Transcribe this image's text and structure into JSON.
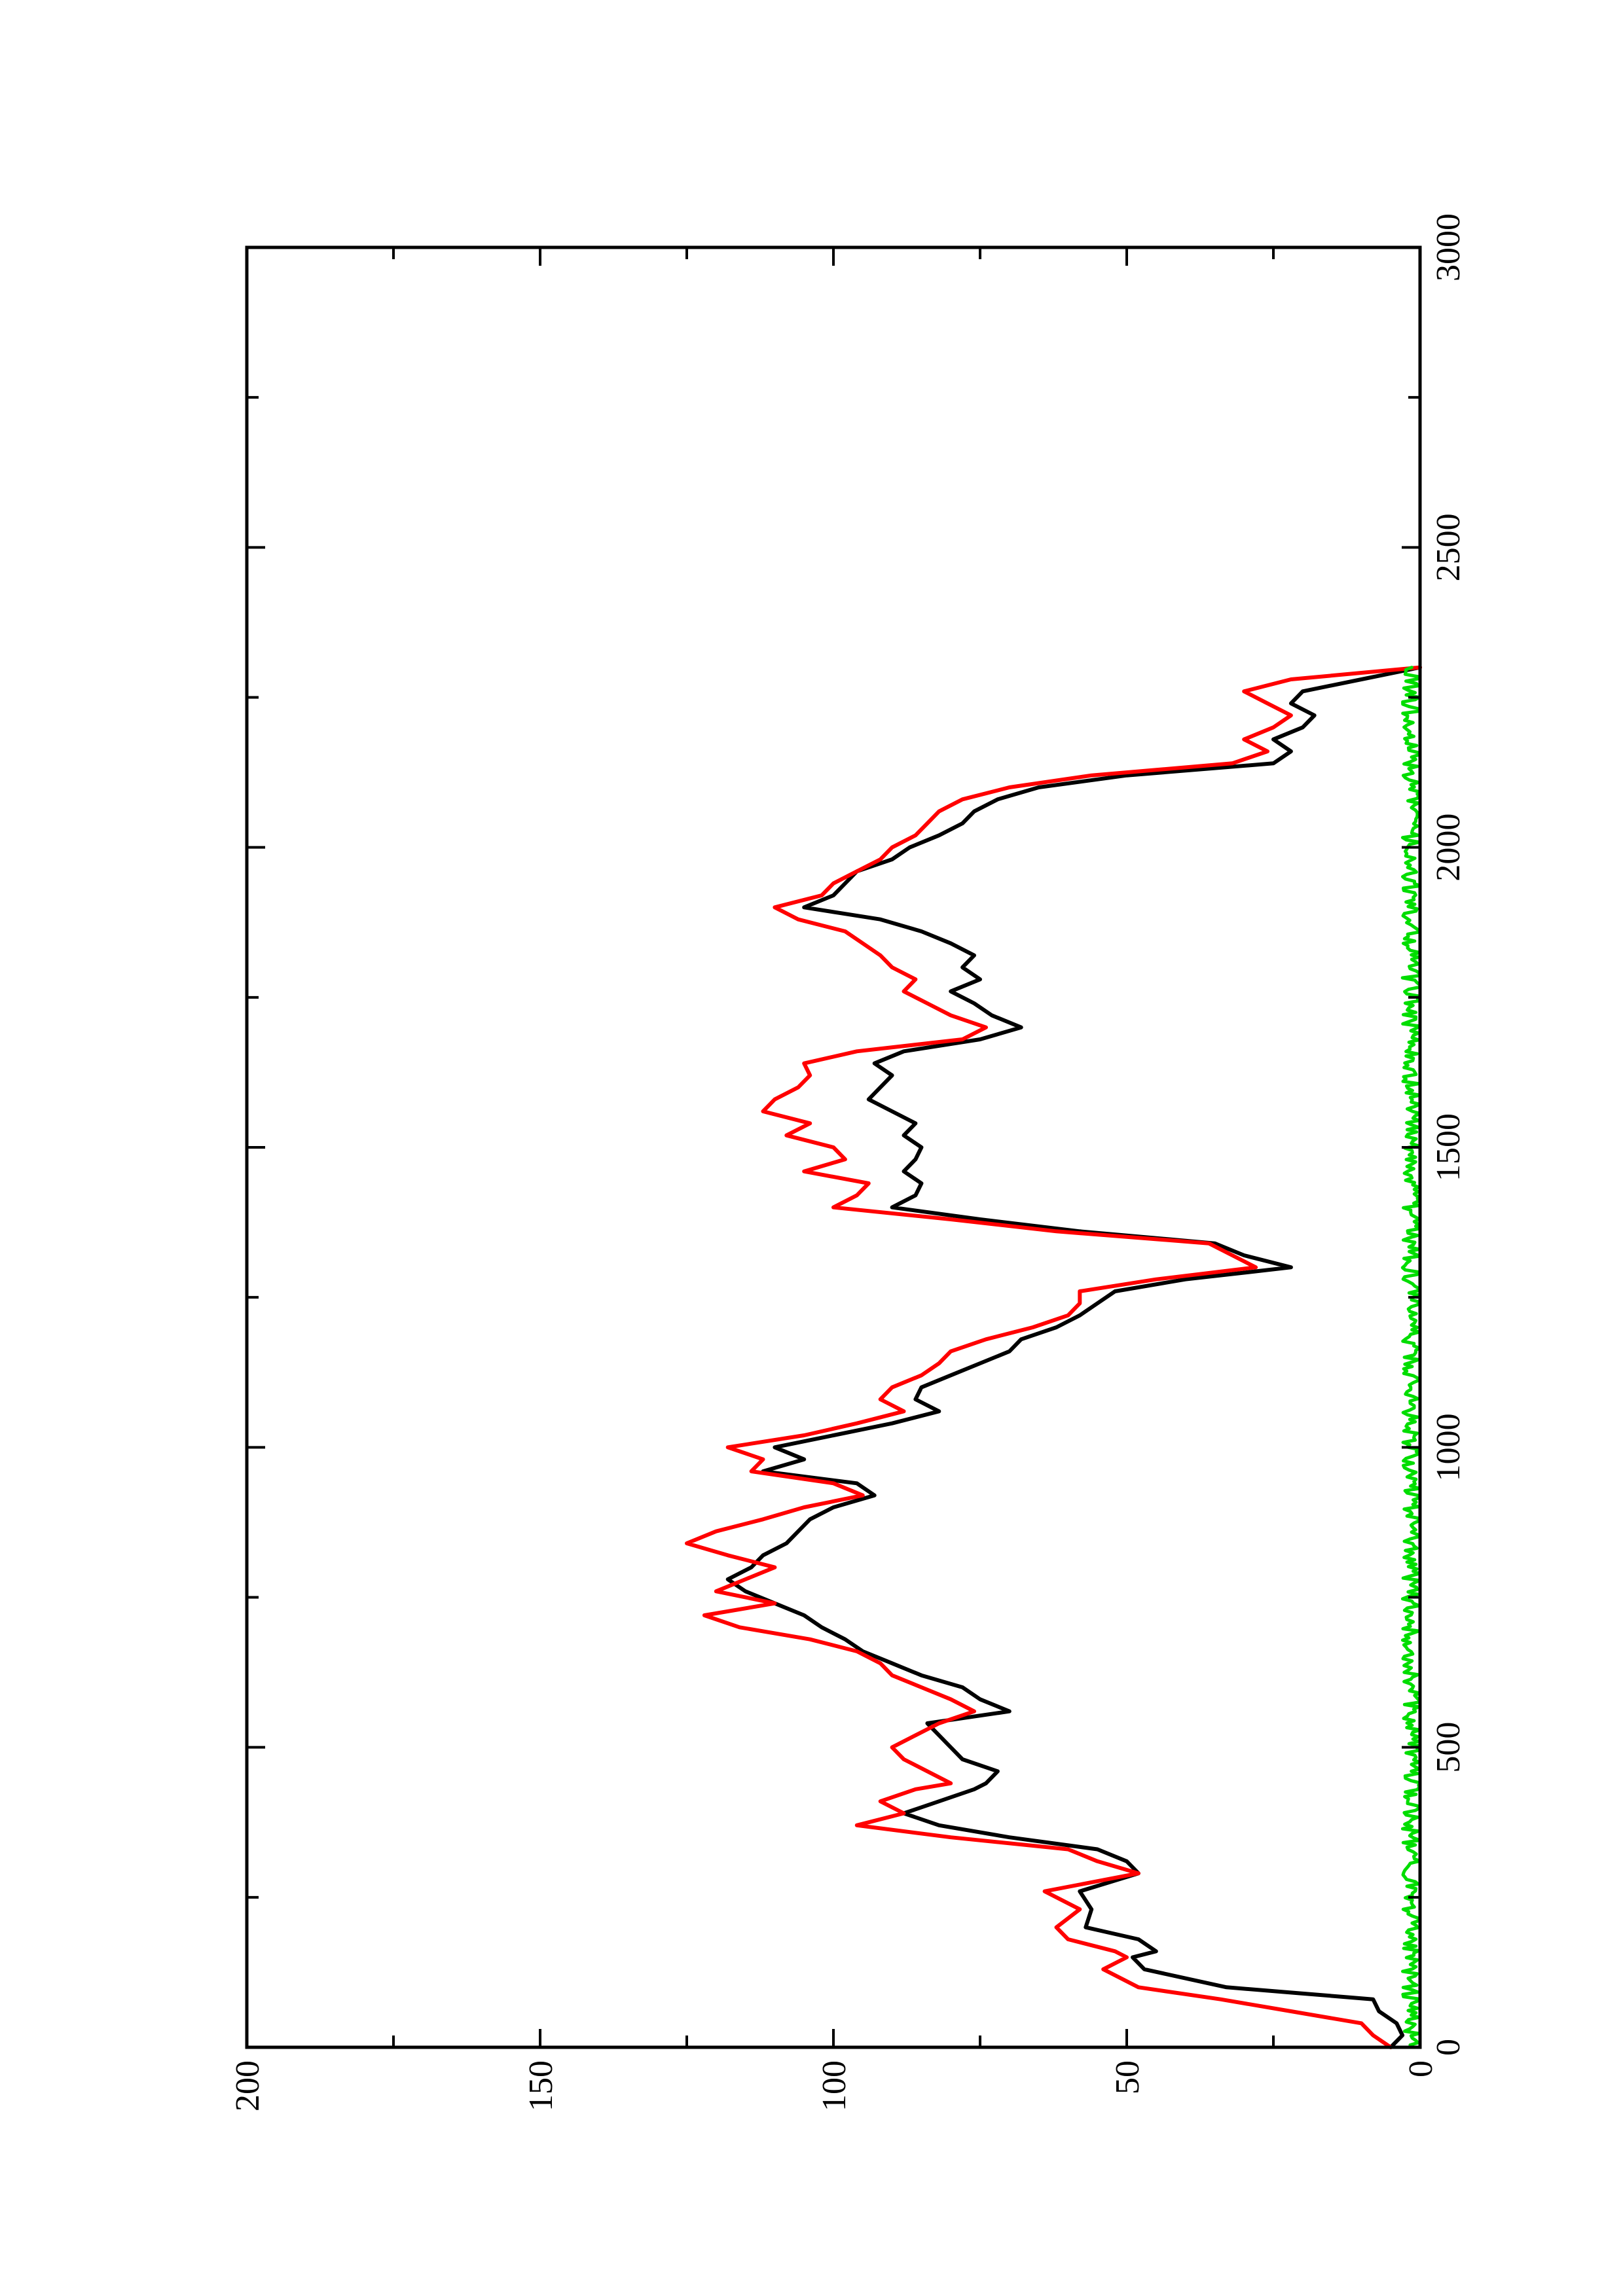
{
  "chart_data": {
    "type": "line",
    "title": "",
    "xlabel": "",
    "ylabel": "",
    "xlim": [
      0,
      3000
    ],
    "ylim": [
      0,
      200
    ],
    "x_ticks": [
      "0",
      "500",
      "1000",
      "1500",
      "2000",
      "2500",
      "3000"
    ],
    "y_ticks": [
      "0",
      "50",
      "100",
      "150",
      "200"
    ],
    "x_tick_values": [
      0,
      500,
      1000,
      1500,
      2000,
      2500,
      3000
    ],
    "y_tick_values": [
      0,
      50,
      100,
      150,
      200
    ],
    "x_minor_tick_values": [
      250,
      750,
      1250,
      1750,
      2250,
      2750
    ],
    "y_minor_tick_values": [
      25,
      75,
      125,
      175
    ],
    "grid": false,
    "legend": "none",
    "orientation": "rotated 90° counter-clockwise",
    "series": [
      {
        "color": "#000000",
        "x": [
          0,
          20,
          40,
          60,
          80,
          100,
          130,
          150,
          160,
          180,
          200,
          230,
          260,
          290,
          310,
          330,
          350,
          370,
          390,
          410,
          430,
          440,
          460,
          480,
          500,
          520,
          540,
          560,
          580,
          600,
          620,
          640,
          660,
          680,
          700,
          720,
          740,
          760,
          780,
          800,
          820,
          840,
          860,
          880,
          900,
          920,
          940,
          960,
          980,
          1000,
          1020,
          1040,
          1060,
          1080,
          1100,
          1120,
          1140,
          1160,
          1180,
          1200,
          1220,
          1240,
          1260,
          1280,
          1300,
          1320,
          1340,
          1360,
          1380,
          1400,
          1420,
          1440,
          1460,
          1480,
          1500,
          1520,
          1540,
          1560,
          1580,
          1600,
          1620,
          1640,
          1660,
          1680,
          1700,
          1720,
          1740,
          1760,
          1780,
          1800,
          1820,
          1840,
          1860,
          1880,
          1900,
          1920,
          1940,
          1960,
          1980,
          2000,
          2020,
          2040,
          2060,
          2080,
          2100,
          2120,
          2140,
          2160,
          2180,
          2200,
          2220,
          2240,
          2260,
          2280,
          2300
        ],
        "y": [
          5,
          3,
          4,
          7,
          8,
          33,
          47,
          49,
          45,
          48,
          57,
          56,
          58,
          48,
          50,
          55,
          70,
          82,
          88,
          82,
          76,
          74,
          72,
          78,
          80,
          82,
          84,
          70,
          75,
          78,
          85,
          90,
          95,
          98,
          102,
          105,
          110,
          115,
          118,
          114,
          112,
          108,
          106,
          104,
          100,
          93,
          96,
          112,
          105,
          110,
          100,
          90,
          82,
          86,
          85,
          80,
          75,
          70,
          68,
          62,
          58,
          55,
          52,
          40,
          22,
          30,
          35,
          58,
          75,
          90,
          86,
          85,
          88,
          86,
          85,
          88,
          86,
          90,
          94,
          92,
          90,
          93,
          88,
          75,
          68,
          73,
          76,
          80,
          75,
          78,
          76,
          80,
          85,
          92,
          105,
          100,
          98,
          96,
          90,
          87,
          82,
          78,
          76,
          72,
          65,
          50,
          25,
          22,
          25,
          20,
          18,
          22,
          20,
          10,
          0
        ]
      },
      {
        "color": "#ff0000",
        "x": [
          0,
          20,
          40,
          60,
          80,
          100,
          130,
          150,
          160,
          180,
          200,
          230,
          260,
          290,
          310,
          330,
          350,
          370,
          390,
          410,
          430,
          440,
          460,
          480,
          500,
          520,
          540,
          560,
          580,
          600,
          620,
          640,
          660,
          680,
          700,
          720,
          740,
          760,
          780,
          800,
          820,
          840,
          860,
          880,
          900,
          920,
          940,
          960,
          980,
          1000,
          1020,
          1040,
          1060,
          1080,
          1100,
          1120,
          1140,
          1160,
          1180,
          1200,
          1220,
          1240,
          1260,
          1280,
          1300,
          1320,
          1340,
          1360,
          1380,
          1400,
          1420,
          1440,
          1460,
          1480,
          1500,
          1520,
          1540,
          1560,
          1580,
          1600,
          1620,
          1640,
          1660,
          1680,
          1700,
          1720,
          1740,
          1760,
          1780,
          1800,
          1820,
          1840,
          1860,
          1880,
          1900,
          1920,
          1940,
          1960,
          1980,
          2000,
          2020,
          2040,
          2060,
          2080,
          2100,
          2120,
          2140,
          2160,
          2180,
          2200,
          2220,
          2240,
          2260,
          2280,
          2300
        ],
        "y": [
          5,
          8,
          10,
          22,
          34,
          48,
          54,
          50,
          52,
          60,
          62,
          58,
          64,
          48,
          55,
          60,
          80,
          96,
          88,
          92,
          86,
          80,
          84,
          88,
          90,
          86,
          82,
          76,
          80,
          85,
          90,
          92,
          96,
          104,
          116,
          122,
          110,
          120,
          115,
          110,
          118,
          125,
          120,
          112,
          105,
          95,
          100,
          114,
          112,
          118,
          105,
          96,
          88,
          92,
          90,
          85,
          82,
          80,
          74,
          66,
          60,
          58,
          58,
          45,
          28,
          32,
          36,
          62,
          80,
          100,
          96,
          94,
          105,
          98,
          100,
          108,
          104,
          112,
          110,
          106,
          104,
          105,
          96,
          78,
          74,
          80,
          84,
          88,
          86,
          90,
          92,
          95,
          98,
          106,
          110,
          102,
          100,
          96,
          92,
          90,
          86,
          84,
          82,
          78,
          70,
          56,
          32,
          26,
          30,
          25,
          22,
          26,
          30,
          22,
          0
        ]
      },
      {
        "color": "#00dd00",
        "x": [
          0,
          2300
        ],
        "y": [
          0,
          0
        ],
        "noise_amplitude": 3
      }
    ]
  }
}
